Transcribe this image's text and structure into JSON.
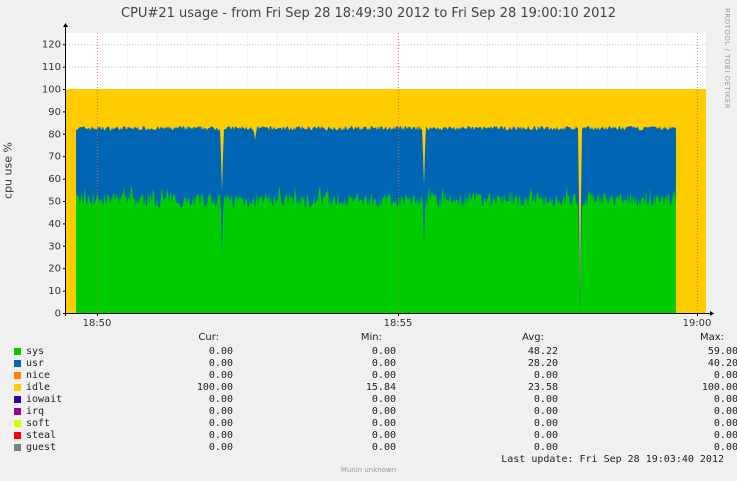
{
  "chart_data": {
    "type": "area",
    "title": "CPU#21 usage - from Fri Sep 28 18:49:30 2012 to Fri Sep 28 19:00:10 2012",
    "ylabel": "cpu use %",
    "ylim": [
      0,
      125
    ],
    "yticks": [
      0,
      10,
      20,
      30,
      40,
      50,
      60,
      70,
      80,
      90,
      100,
      110,
      120
    ],
    "xticks": [
      "18:50",
      "18:55",
      "19:00"
    ],
    "grid": true,
    "stacked": true,
    "series": [
      {
        "name": "sys",
        "color": "#00cc00",
        "cur": "0.00",
        "min": "0.00",
        "avg": "48.22",
        "max": "59.00"
      },
      {
        "name": "usr",
        "color": "#0066b3",
        "cur": "0.00",
        "min": "0.00",
        "avg": "28.20",
        "max": "40.20"
      },
      {
        "name": "nice",
        "color": "#ff8000",
        "cur": "0.00",
        "min": "0.00",
        "avg": "0.00",
        "max": "0.00"
      },
      {
        "name": "idle",
        "color": "#ffcc00",
        "cur": "100.00",
        "min": "15.84",
        "avg": "23.58",
        "max": "100.00"
      },
      {
        "name": "iowait",
        "color": "#330099",
        "cur": "0.00",
        "min": "0.00",
        "avg": "0.00",
        "max": "0.00"
      },
      {
        "name": "irq",
        "color": "#990099",
        "cur": "0.00",
        "min": "0.00",
        "avg": "0.00",
        "max": "0.00"
      },
      {
        "name": "soft",
        "color": "#ccff00",
        "cur": "0.00",
        "min": "0.00",
        "avg": "0.00",
        "max": "0.00"
      },
      {
        "name": "steal",
        "color": "#ff0000",
        "cur": "0.00",
        "min": "0.00",
        "avg": "0.00",
        "max": "0.00"
      },
      {
        "name": "guest",
        "color": "#808080",
        "cur": "0.00",
        "min": "0.00",
        "avg": "0.00",
        "max": "0.00"
      }
    ],
    "legend_headers": {
      "cur": "Cur:",
      "min": "Min:",
      "avg": "Avg:",
      "max": "Max:"
    }
  },
  "last_update": "Last update:  Fri Sep 28 19:03:40 2012",
  "watermark": "RRDTOOL / TOBI OETIKER",
  "footer": "Munin unknown"
}
